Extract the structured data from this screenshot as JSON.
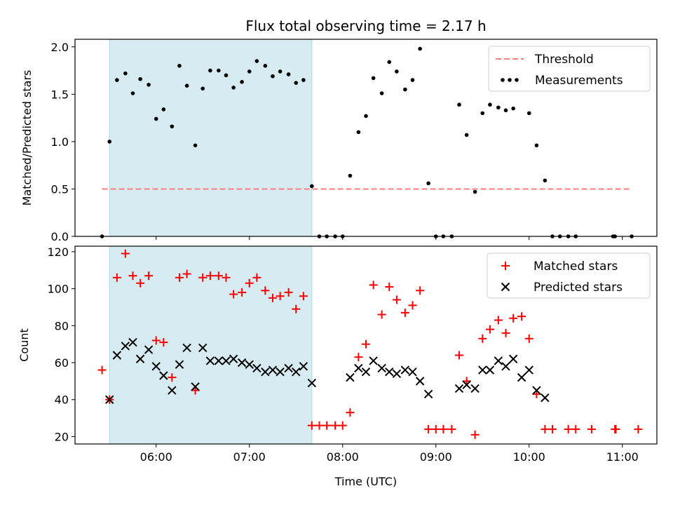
{
  "chart_data": {
    "type": "scatter",
    "title": "Flux total observing time = 2.17 h",
    "xlabel": "Time (UTC)",
    "x_ticks": [
      "06:00",
      "07:00",
      "08:00",
      "09:00",
      "10:00",
      "11:00"
    ],
    "x_tick_values": [
      6.0,
      7.0,
      8.0,
      9.0,
      10.0,
      11.0
    ],
    "xlim": [
      5.13,
      11.37
    ],
    "shaded_region": {
      "x": [
        5.5,
        7.67
      ],
      "color": "#add8e6"
    },
    "panels": [
      {
        "ylabel": "Matched/Predicted stars",
        "ylim": [
          0,
          2.08
        ],
        "y_ticks": [
          "0.0",
          "0.5",
          "1.0",
          "1.5",
          "2.0"
        ],
        "y_tick_values": [
          0,
          0.5,
          1.0,
          1.5,
          2.0
        ],
        "legend": {
          "position": "top-right"
        },
        "series": [
          {
            "name": "Threshold",
            "kind": "dashed-line",
            "color": "#ff7f7f",
            "x": [
              5.42,
              11.1
            ],
            "y": [
              0.5,
              0.5
            ]
          },
          {
            "name": "Measurements",
            "kind": "dot",
            "color": "#000000",
            "points": [
              [
                5.42,
                0.0
              ],
              [
                5.5,
                1.0
              ],
              [
                5.58,
                1.65
              ],
              [
                5.67,
                1.72
              ],
              [
                5.75,
                1.51
              ],
              [
                5.83,
                1.66
              ],
              [
                5.92,
                1.6
              ],
              [
                6.0,
                1.24
              ],
              [
                6.08,
                1.34
              ],
              [
                6.17,
                1.16
              ],
              [
                6.25,
                1.8
              ],
              [
                6.33,
                1.59
              ],
              [
                6.42,
                0.96
              ],
              [
                6.5,
                1.56
              ],
              [
                6.58,
                1.75
              ],
              [
                6.67,
                1.75
              ],
              [
                6.75,
                1.7
              ],
              [
                6.83,
                1.57
              ],
              [
                6.92,
                1.63
              ],
              [
                7.0,
                1.74
              ],
              [
                7.08,
                1.85
              ],
              [
                7.17,
                1.8
              ],
              [
                7.25,
                1.69
              ],
              [
                7.33,
                1.74
              ],
              [
                7.42,
                1.71
              ],
              [
                7.5,
                1.62
              ],
              [
                7.58,
                1.65
              ],
              [
                7.67,
                0.53
              ],
              [
                7.75,
                0.0
              ],
              [
                7.83,
                0.0
              ],
              [
                7.92,
                0.0
              ],
              [
                8.0,
                0.0
              ],
              [
                8.08,
                0.64
              ],
              [
                8.17,
                1.1
              ],
              [
                8.25,
                1.27
              ],
              [
                8.33,
                1.67
              ],
              [
                8.42,
                1.51
              ],
              [
                8.5,
                1.84
              ],
              [
                8.58,
                1.74
              ],
              [
                8.67,
                1.55
              ],
              [
                8.75,
                1.65
              ],
              [
                8.83,
                1.98
              ],
              [
                8.92,
                0.56
              ],
              [
                9.0,
                0.0
              ],
              [
                9.08,
                0.0
              ],
              [
                9.17,
                0.0
              ],
              [
                9.25,
                1.39
              ],
              [
                9.33,
                1.07
              ],
              [
                9.42,
                0.47
              ],
              [
                9.5,
                1.3
              ],
              [
                9.58,
                1.39
              ],
              [
                9.67,
                1.36
              ],
              [
                9.75,
                1.33
              ],
              [
                9.83,
                1.35
              ],
              [
                10.0,
                1.3
              ],
              [
                10.08,
                0.96
              ],
              [
                10.17,
                0.59
              ],
              [
                10.25,
                0.0
              ],
              [
                10.33,
                0.0
              ],
              [
                10.42,
                0.0
              ],
              [
                10.5,
                0.0
              ],
              [
                10.9,
                0.0
              ],
              [
                10.92,
                0.0
              ],
              [
                11.1,
                0.0
              ]
            ]
          }
        ]
      },
      {
        "ylabel": "Count",
        "ylim": [
          16,
          123
        ],
        "y_ticks": [
          "20",
          "40",
          "60",
          "80",
          "100",
          "120"
        ],
        "y_tick_values": [
          20,
          40,
          60,
          80,
          100,
          120
        ],
        "legend": {
          "position": "top-right"
        },
        "series": [
          {
            "name": "Matched stars",
            "kind": "plus",
            "color": "#ff0000",
            "points": [
              [
                5.42,
                56
              ],
              [
                5.5,
                40
              ],
              [
                5.58,
                106
              ],
              [
                5.67,
                119
              ],
              [
                5.75,
                107
              ],
              [
                5.83,
                103
              ],
              [
                5.92,
                107
              ],
              [
                6.0,
                72
              ],
              [
                6.08,
                71
              ],
              [
                6.17,
                52
              ],
              [
                6.25,
                106
              ],
              [
                6.33,
                108
              ],
              [
                6.42,
                45
              ],
              [
                6.5,
                106
              ],
              [
                6.58,
                107
              ],
              [
                6.67,
                107
              ],
              [
                6.75,
                106
              ],
              [
                6.83,
                97
              ],
              [
                6.92,
                98
              ],
              [
                7.0,
                103
              ],
              [
                7.08,
                106
              ],
              [
                7.17,
                99
              ],
              [
                7.25,
                95
              ],
              [
                7.33,
                96
              ],
              [
                7.42,
                98
              ],
              [
                7.5,
                89
              ],
              [
                7.58,
                96
              ],
              [
                7.67,
                26
              ],
              [
                7.75,
                26
              ],
              [
                7.83,
                26
              ],
              [
                7.92,
                26
              ],
              [
                8.0,
                26
              ],
              [
                8.08,
                33
              ],
              [
                8.17,
                63
              ],
              [
                8.25,
                70
              ],
              [
                8.33,
                102
              ],
              [
                8.42,
                86
              ],
              [
                8.5,
                101
              ],
              [
                8.58,
                94
              ],
              [
                8.67,
                87
              ],
              [
                8.75,
                91
              ],
              [
                8.83,
                99
              ],
              [
                8.92,
                24
              ],
              [
                9.0,
                24
              ],
              [
                9.08,
                24
              ],
              [
                9.17,
                24
              ],
              [
                9.25,
                64
              ],
              [
                9.33,
                50
              ],
              [
                9.42,
                21
              ],
              [
                9.5,
                73
              ],
              [
                9.58,
                78
              ],
              [
                9.67,
                83
              ],
              [
                9.75,
                76
              ],
              [
                9.83,
                84
              ],
              [
                9.92,
                85
              ],
              [
                10.0,
                73
              ],
              [
                10.08,
                43
              ],
              [
                10.17,
                24
              ],
              [
                10.25,
                24
              ],
              [
                10.42,
                24
              ],
              [
                10.5,
                24
              ],
              [
                10.67,
                24
              ],
              [
                10.92,
                24
              ],
              [
                10.93,
                24
              ],
              [
                11.17,
                24
              ]
            ]
          },
          {
            "name": "Predicted stars",
            "kind": "x",
            "color": "#000000",
            "points": [
              [
                5.5,
                40
              ],
              [
                5.58,
                64
              ],
              [
                5.67,
                69
              ],
              [
                5.75,
                71
              ],
              [
                5.83,
                62
              ],
              [
                5.92,
                67
              ],
              [
                6.0,
                58
              ],
              [
                6.08,
                53
              ],
              [
                6.17,
                45
              ],
              [
                6.25,
                59
              ],
              [
                6.33,
                68
              ],
              [
                6.42,
                47
              ],
              [
                6.5,
                68
              ],
              [
                6.58,
                61
              ],
              [
                6.67,
                61
              ],
              [
                6.75,
                61
              ],
              [
                6.83,
                62
              ],
              [
                6.92,
                60
              ],
              [
                7.0,
                59
              ],
              [
                7.08,
                57
              ],
              [
                7.17,
                55
              ],
              [
                7.25,
                56
              ],
              [
                7.33,
                55
              ],
              [
                7.42,
                57
              ],
              [
                7.5,
                55
              ],
              [
                7.58,
                58
              ],
              [
                7.67,
                49
              ],
              [
                8.08,
                52
              ],
              [
                8.17,
                57
              ],
              [
                8.25,
                55
              ],
              [
                8.33,
                61
              ],
              [
                8.42,
                57
              ],
              [
                8.5,
                55
              ],
              [
                8.58,
                54
              ],
              [
                8.67,
                56
              ],
              [
                8.75,
                55
              ],
              [
                8.83,
                50
              ],
              [
                8.92,
                43
              ],
              [
                9.25,
                46
              ],
              [
                9.33,
                48
              ],
              [
                9.42,
                46
              ],
              [
                9.5,
                56
              ],
              [
                9.58,
                56
              ],
              [
                9.67,
                61
              ],
              [
                9.75,
                58
              ],
              [
                9.83,
                62
              ],
              [
                9.92,
                52
              ],
              [
                10.0,
                56
              ],
              [
                10.08,
                45
              ],
              [
                10.17,
                41
              ]
            ]
          }
        ]
      }
    ]
  }
}
